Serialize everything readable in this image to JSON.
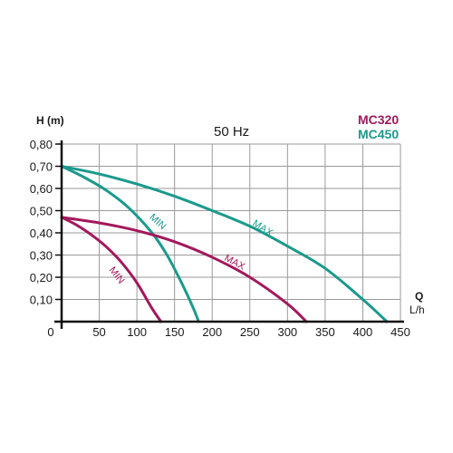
{
  "chart_data": {
    "type": "line",
    "title": "50 Hz",
    "ylabel": "H (m)",
    "xlabel_line1": "Q",
    "xlabel_line2": "L/h",
    "xlim": [
      0,
      450
    ],
    "ylim": [
      0,
      0.8
    ],
    "x_ticks": [
      0,
      50,
      100,
      150,
      200,
      250,
      300,
      350,
      400,
      450
    ],
    "y_ticks": [
      "0,10",
      "0,20",
      "0,30",
      "0,40",
      "0,50",
      "0,60",
      "0,70",
      "0,80"
    ],
    "y_tick_values": [
      0.1,
      0.2,
      0.3,
      0.4,
      0.5,
      0.6,
      0.7,
      0.8
    ],
    "grid": true,
    "legend_position": "top-right",
    "legend": [
      {
        "name": "MC320",
        "color": "#a3195b"
      },
      {
        "name": "MC450",
        "color": "#1a9a8c"
      }
    ],
    "series": [
      {
        "group": "MC450",
        "label": "MAX",
        "color": "#1a9a8c",
        "x": [
          0,
          50,
          100,
          150,
          200,
          250,
          300,
          350,
          400,
          432
        ],
        "y": [
          0.7,
          0.665,
          0.62,
          0.565,
          0.5,
          0.43,
          0.34,
          0.24,
          0.1,
          0.0
        ],
        "label_at": [
          265,
          0.41
        ],
        "label_angle": 32
      },
      {
        "group": "MC450",
        "label": "MIN",
        "color": "#1a9a8c",
        "x": [
          0,
          30,
          60,
          90,
          120,
          140,
          160,
          175,
          182
        ],
        "y": [
          0.7,
          0.65,
          0.59,
          0.51,
          0.4,
          0.3,
          0.17,
          0.06,
          0.0
        ],
        "label_at": [
          125,
          0.44
        ],
        "label_angle": 42
      },
      {
        "group": "MC320",
        "label": "MAX",
        "color": "#a3195b",
        "x": [
          0,
          50,
          100,
          150,
          200,
          250,
          300,
          325
        ],
        "y": [
          0.47,
          0.445,
          0.41,
          0.36,
          0.29,
          0.2,
          0.08,
          0.0
        ],
        "label_at": [
          228,
          0.255
        ],
        "label_angle": 28
      },
      {
        "group": "MC320",
        "label": "MIN",
        "color": "#a3195b",
        "x": [
          0,
          20,
          40,
          60,
          80,
          100,
          120,
          132
        ],
        "y": [
          0.47,
          0.435,
          0.39,
          0.335,
          0.265,
          0.175,
          0.06,
          0.0
        ],
        "label_at": [
          70,
          0.2
        ],
        "label_angle": 52
      }
    ]
  }
}
